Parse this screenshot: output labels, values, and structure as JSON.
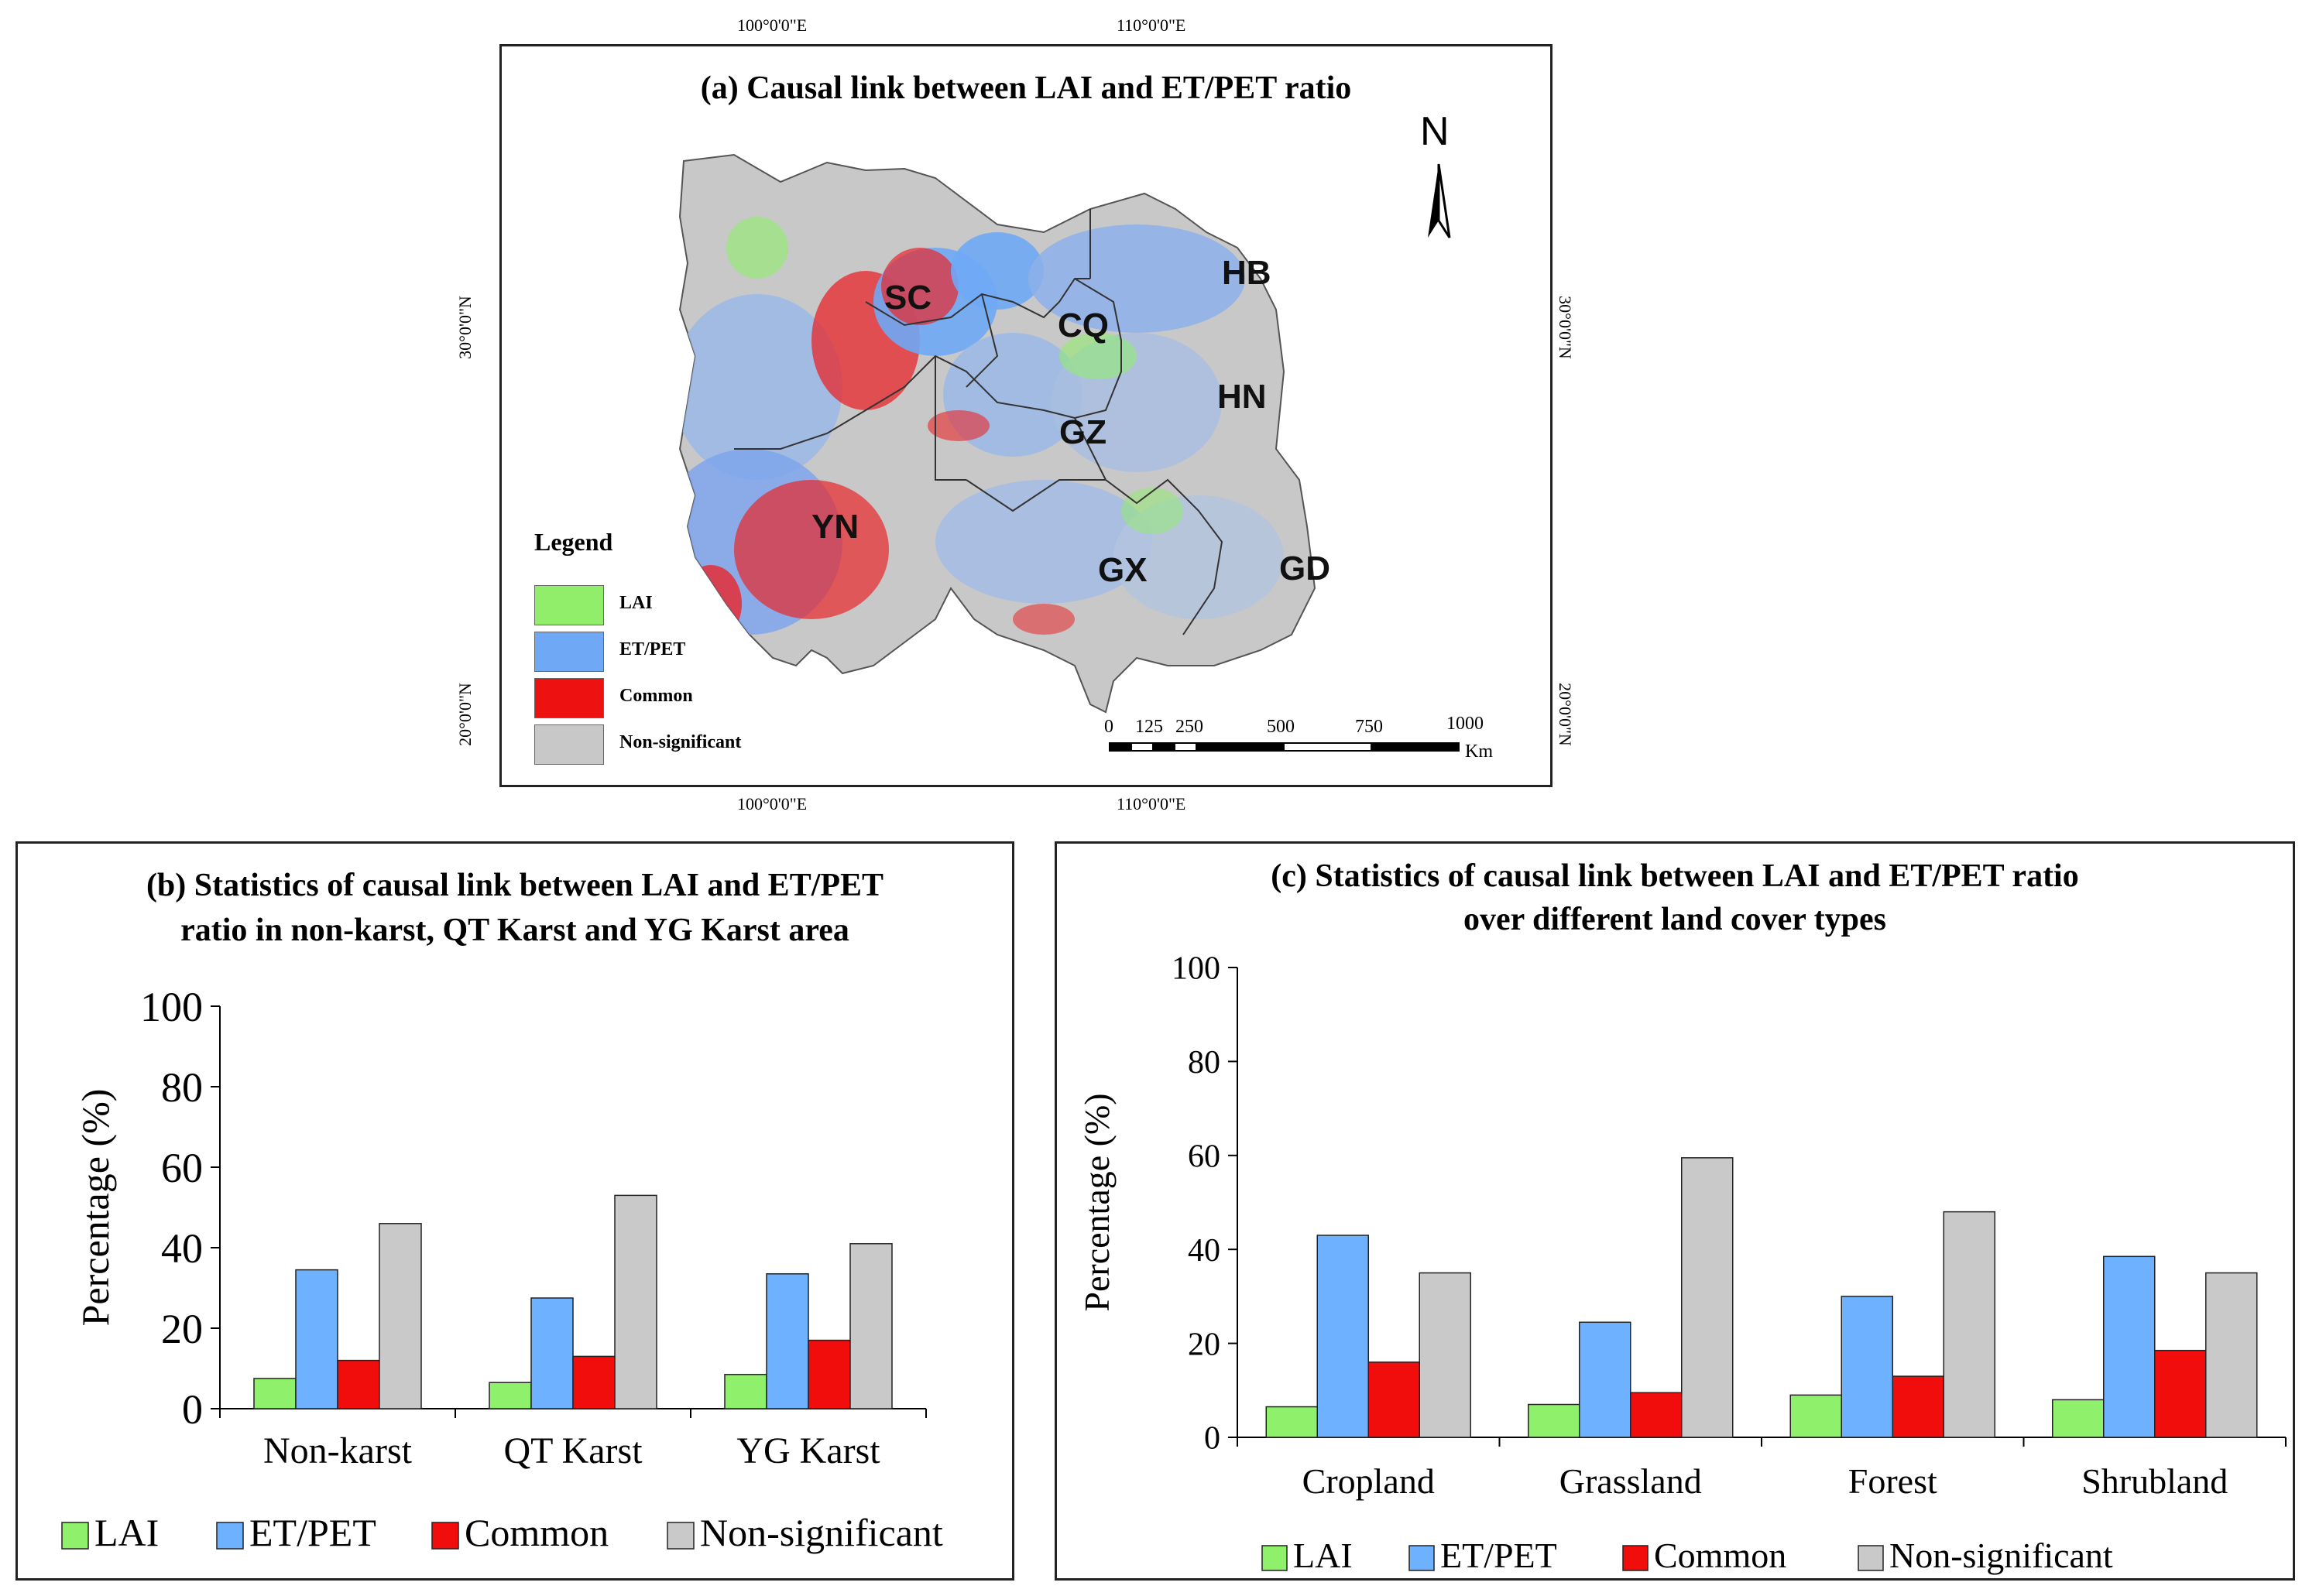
{
  "map": {
    "title": "(a) Causal link between LAI and ET/PET ratio",
    "coords": {
      "top_left": "100°0'0\"E",
      "top_right": "110°0'0\"E",
      "bottom_left": "100°0'0\"E",
      "bottom_right": "110°0'0\"E",
      "left_top": "30°0'0\"N",
      "left_bottom": "20°0'0\"N",
      "right_top": "30°0'0\"N",
      "right_bottom": "20°0'0\"N"
    },
    "north": "N",
    "provinces": [
      "SC",
      "CQ",
      "HB",
      "HN",
      "GZ",
      "YN",
      "GX",
      "GD"
    ],
    "legend": {
      "title": "Legend",
      "items": [
        {
          "label": "LAI",
          "color": "#90EE6A"
        },
        {
          "label": "ET/PET",
          "color": "#6FA8F5"
        },
        {
          "label": "Common",
          "color": "#EE1111"
        },
        {
          "label": "Non-significant",
          "color": "#C8C8C8"
        }
      ]
    },
    "scale": {
      "ticks": [
        "0",
        "125",
        "250",
        "500",
        "750",
        "1000"
      ],
      "unit": "Km"
    }
  },
  "legend_entries": [
    {
      "label": "LAI",
      "color": "#8EF06B"
    },
    {
      "label": "ET/PET",
      "color": "#6EB1FF"
    },
    {
      "label": "Common",
      "color": "#F20D0D"
    },
    {
      "label": "Non-significant",
      "color": "#C9C9C9"
    }
  ],
  "chart_data": [
    {
      "type": "bar",
      "title": "(b) Statistics of causal link between LAI and ET/PET ratio in non-karst, QT Karst and YG Karst area",
      "title_lines": [
        "(b) Statistics of causal link between LAI and ET/PET",
        "ratio in non-karst, QT Karst and YG Karst area"
      ],
      "categories": [
        "Non-karst",
        "QT Karst",
        "YG Karst"
      ],
      "series": [
        {
          "name": "LAI",
          "values": [
            7.5,
            6.5,
            8.5
          ]
        },
        {
          "name": "ET/PET",
          "values": [
            34.5,
            27.5,
            33.5
          ]
        },
        {
          "name": "Common",
          "values": [
            12,
            13,
            17
          ]
        },
        {
          "name": "Non-significant",
          "values": [
            46,
            53,
            41
          ]
        }
      ],
      "ylabel": "Percentage (%)",
      "ylim": [
        0,
        100
      ],
      "yticks": [
        "0",
        "20",
        "40",
        "60",
        "80",
        "100"
      ]
    },
    {
      "type": "bar",
      "title": "(c) Statistics of causal link between LAI and ET/PET ratio over different land cover types",
      "title_lines": [
        "(c) Statistics of causal link between LAI and ET/PET ratio",
        "over different land cover types"
      ],
      "categories": [
        "Cropland",
        "Grassland",
        "Forest",
        "Shrubland"
      ],
      "series": [
        {
          "name": "LAI",
          "values": [
            6.5,
            7,
            9,
            8
          ]
        },
        {
          "name": "ET/PET",
          "values": [
            43,
            24.5,
            30,
            38.5
          ]
        },
        {
          "name": "Common",
          "values": [
            16,
            9.5,
            13,
            18.5
          ]
        },
        {
          "name": "Non-significant",
          "values": [
            35,
            59.5,
            48,
            35
          ]
        }
      ],
      "ylabel": "Percentage (%)",
      "ylim": [
        0,
        100
      ],
      "yticks": [
        "0",
        "20",
        "40",
        "60",
        "80",
        "100"
      ]
    }
  ]
}
